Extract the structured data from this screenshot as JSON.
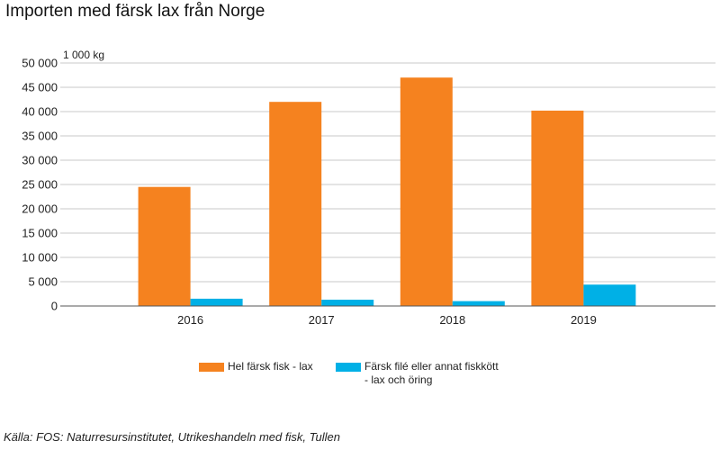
{
  "chart_data": {
    "type": "bar",
    "title": "Importen med färsk lax från Norge",
    "unit_label": "1 000 kg",
    "xlabel": "",
    "ylabel": "",
    "categories": [
      "2016",
      "2017",
      "2018",
      "2019"
    ],
    "series": [
      {
        "name": "Hel färsk fisk - lax",
        "color": "#f5821f",
        "values": [
          24500,
          42000,
          47000,
          40200
        ]
      },
      {
        "name": "Färsk filé eller annat fiskkött\n- lax och öring",
        "color": "#00b0e6",
        "values": [
          1500,
          1300,
          1000,
          4400
        ]
      }
    ],
    "ylim": [
      0,
      50000
    ],
    "yticks": [
      0,
      5000,
      10000,
      15000,
      20000,
      25000,
      30000,
      35000,
      40000,
      45000,
      50000
    ],
    "ytick_labels": [
      "0",
      "5 000",
      "10 000",
      "15 000",
      "20 000",
      "25 000",
      "30 000",
      "35 000",
      "40 000",
      "45 000",
      "50 000"
    ],
    "grid": true,
    "legend_position": "bottom"
  },
  "source_note": "Källa: FOS: Naturresursinstitutet, Utrikeshandeln med fisk, Tullen"
}
